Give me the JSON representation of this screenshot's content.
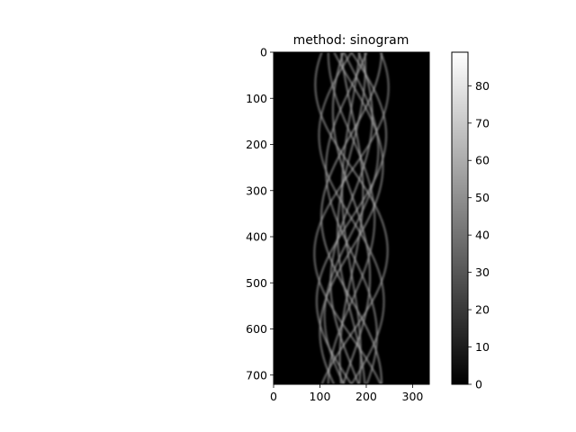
{
  "chart_data": [
    {
      "type": "heatmap",
      "title": "method: sinogram",
      "xlabel": "",
      "ylabel": "",
      "xlim": [
        0,
        336
      ],
      "ylim": [
        720,
        0
      ],
      "x_ticks": [
        0,
        100,
        200,
        300
      ],
      "y_ticks": [
        0,
        100,
        200,
        300,
        400,
        500,
        600,
        700
      ],
      "colormap": "gray",
      "background_color": "#000000",
      "grid": false,
      "period": 720,
      "center_x": 168,
      "traces": [
        {
          "amplitude": 75,
          "phase": 0,
          "intensity": 0.55
        },
        {
          "amplitude": 45,
          "phase": 0.35,
          "intensity": 0.6
        },
        {
          "amplitude": 80,
          "phase": 0.9,
          "intensity": 0.5
        },
        {
          "amplitude": 30,
          "phase": 1.3,
          "intensity": 0.55
        },
        {
          "amplitude": 65,
          "phase": 1.6,
          "intensity": 0.6
        },
        {
          "amplitude": 20,
          "phase": 2.1,
          "intensity": 0.5
        },
        {
          "amplitude": 55,
          "phase": 2.5,
          "intensity": 0.55
        },
        {
          "amplitude": 70,
          "phase": 3.14,
          "intensity": 0.5
        },
        {
          "amplitude": 40,
          "phase": 3.6,
          "intensity": 0.6
        },
        {
          "amplitude": 78,
          "phase": 4.1,
          "intensity": 0.55
        },
        {
          "amplitude": 50,
          "phase": 4.7,
          "intensity": 0.5
        },
        {
          "amplitude": 25,
          "phase": 5.2,
          "intensity": 0.6
        },
        {
          "amplitude": 68,
          "phase": 5.7,
          "intensity": 0.55
        },
        {
          "amplitude": 58,
          "phase": 6.0,
          "intensity": 0.5
        }
      ],
      "colorbar": {
        "min": 0,
        "max": 89,
        "ticks": [
          0,
          10,
          20,
          30,
          40,
          50,
          60,
          70,
          80
        ]
      }
    }
  ]
}
